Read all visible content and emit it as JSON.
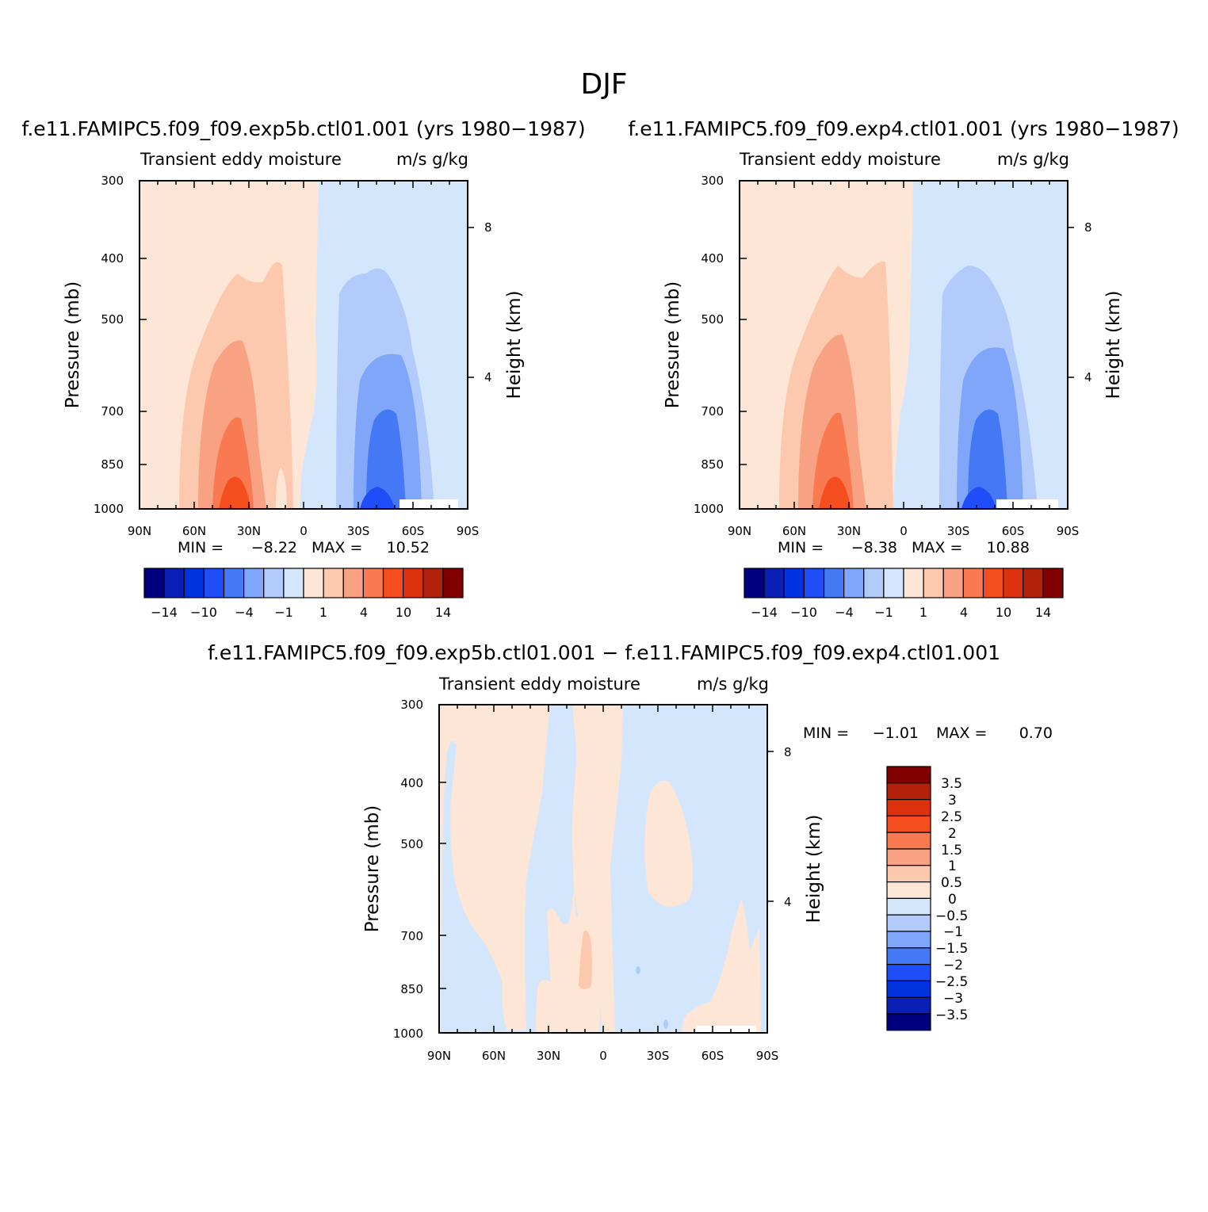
{
  "title": "DJF",
  "chart_data": [
    {
      "type": "contour",
      "case_title": "f.e11.FAMIPC5.f09_f09.exp5b.ctl01.001 (yrs 1980−1987)",
      "subtitle_left": "Transient eddy moisture",
      "subtitle_right": "m/s g/kg",
      "ylabel": "Pressure (mb)",
      "y2label": "Height (km)",
      "y_ticks": [
        "300",
        "400",
        "500",
        "700",
        "850",
        "1000"
      ],
      "y2_ticks": [
        "8",
        "4"
      ],
      "x_ticks": [
        "90N",
        "60N",
        "30N",
        "0",
        "30S",
        "60S",
        "90S"
      ],
      "min_label": "MIN =",
      "min_value": "−8.22",
      "max_label": "MAX =",
      "max_value": "10.52",
      "colorbar_labels": [
        "−14",
        "−10",
        "−4",
        "−1",
        "1",
        "4",
        "10",
        "14"
      ]
    },
    {
      "type": "contour",
      "case_title": "f.e11.FAMIPC5.f09_f09.exp4.ctl01.001 (yrs 1980−1987)",
      "subtitle_left": "Transient eddy moisture",
      "subtitle_right": "m/s g/kg",
      "ylabel": "Pressure (mb)",
      "y2label": "Height (km)",
      "y_ticks": [
        "300",
        "400",
        "500",
        "700",
        "850",
        "1000"
      ],
      "y2_ticks": [
        "8",
        "4"
      ],
      "x_ticks": [
        "90N",
        "60N",
        "30N",
        "0",
        "30S",
        "60S",
        "90S"
      ],
      "min_label": "MIN =",
      "min_value": "−8.38",
      "max_label": "MAX =",
      "max_value": "10.88",
      "colorbar_labels": [
        "−14",
        "−10",
        "−4",
        "−1",
        "1",
        "4",
        "10",
        "14"
      ]
    },
    {
      "type": "contour",
      "case_title": "f.e11.FAMIPC5.f09_f09.exp5b.ctl01.001 − f.e11.FAMIPC5.f09_f09.exp4.ctl01.001",
      "subtitle_left": "Transient eddy moisture",
      "subtitle_right": "m/s g/kg",
      "ylabel": "Pressure (mb)",
      "y2label": "Height (km)",
      "y_ticks": [
        "300",
        "400",
        "500",
        "700",
        "850",
        "1000"
      ],
      "y2_ticks": [
        "8",
        "4"
      ],
      "x_ticks": [
        "90N",
        "60N",
        "30N",
        "0",
        "30S",
        "60S",
        "90S"
      ],
      "min_label": "MIN =",
      "min_value": "−1.01",
      "max_label": "MAX =",
      "max_value": "0.70",
      "colorbar_labels": [
        "3.5",
        "3",
        "2.5",
        "2",
        "1.5",
        "1",
        "0.5",
        "0",
        "−0.5",
        "−1",
        "−1.5",
        "−2",
        "−2.5",
        "−3",
        "−3.5"
      ]
    }
  ],
  "palette": [
    "#00007f",
    "#0a1fb5",
    "#0033e0",
    "#1f4df7",
    "#4478f5",
    "#7fa6f9",
    "#b3cbfb",
    "#d4e6fc",
    "#fde6d6",
    "#fcc9ae",
    "#f9a283",
    "#f97a50",
    "#f44d1e",
    "#dc330e",
    "#b2210c",
    "#800000"
  ]
}
